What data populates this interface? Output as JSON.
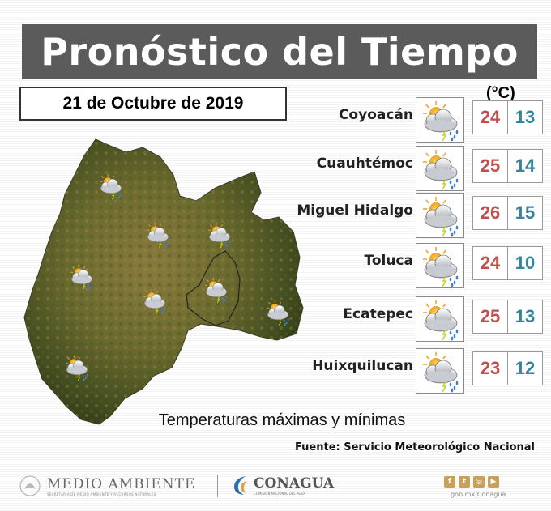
{
  "title": "Pronóstico del Tiempo",
  "date": "21 de Octubre de 2019",
  "unit": "(°C)",
  "forecasts": [
    {
      "city": "Coyoacán",
      "max": "24",
      "min": "13",
      "icon": "cloud-sun-rain-icon"
    },
    {
      "city": "Cuauhtémoc",
      "max": "25",
      "min": "14",
      "icon": "cloud-sun-storm-icon"
    },
    {
      "city": "Miguel Hidalgo",
      "max": "26",
      "min": "15",
      "icon": "cloud-sun-rain-icon"
    },
    {
      "city": "Toluca",
      "max": "24",
      "min": "10",
      "icon": "cloud-sun-storm-icon"
    },
    {
      "city": "Ecatepec",
      "max": "25",
      "min": "13",
      "icon": "cloud-sun-storm-icon"
    },
    {
      "city": "Huixquilucan",
      "max": "23",
      "min": "12",
      "icon": "cloud-sun-storm-icon"
    }
  ],
  "subtitle": "Temperaturas máximas y mínimas",
  "source": "Fuente: Servicio Meteorológico Nacional",
  "footer": {
    "medio_ambiente": "MEDIO AMBIENTE",
    "medio_ambiente_sub": "SECRETARÍA DE MEDIO AMBIENTE Y RECURSOS NATURALES",
    "conagua": "CONAGUA",
    "conagua_sub": "COMISIÓN NACIONAL DEL AGUA",
    "website": "gob.mx/Conagua"
  },
  "colors": {
    "max": "#c0504d",
    "min": "#31859c",
    "title_bg": "#5b5b5b",
    "social": "#c8a05a"
  }
}
